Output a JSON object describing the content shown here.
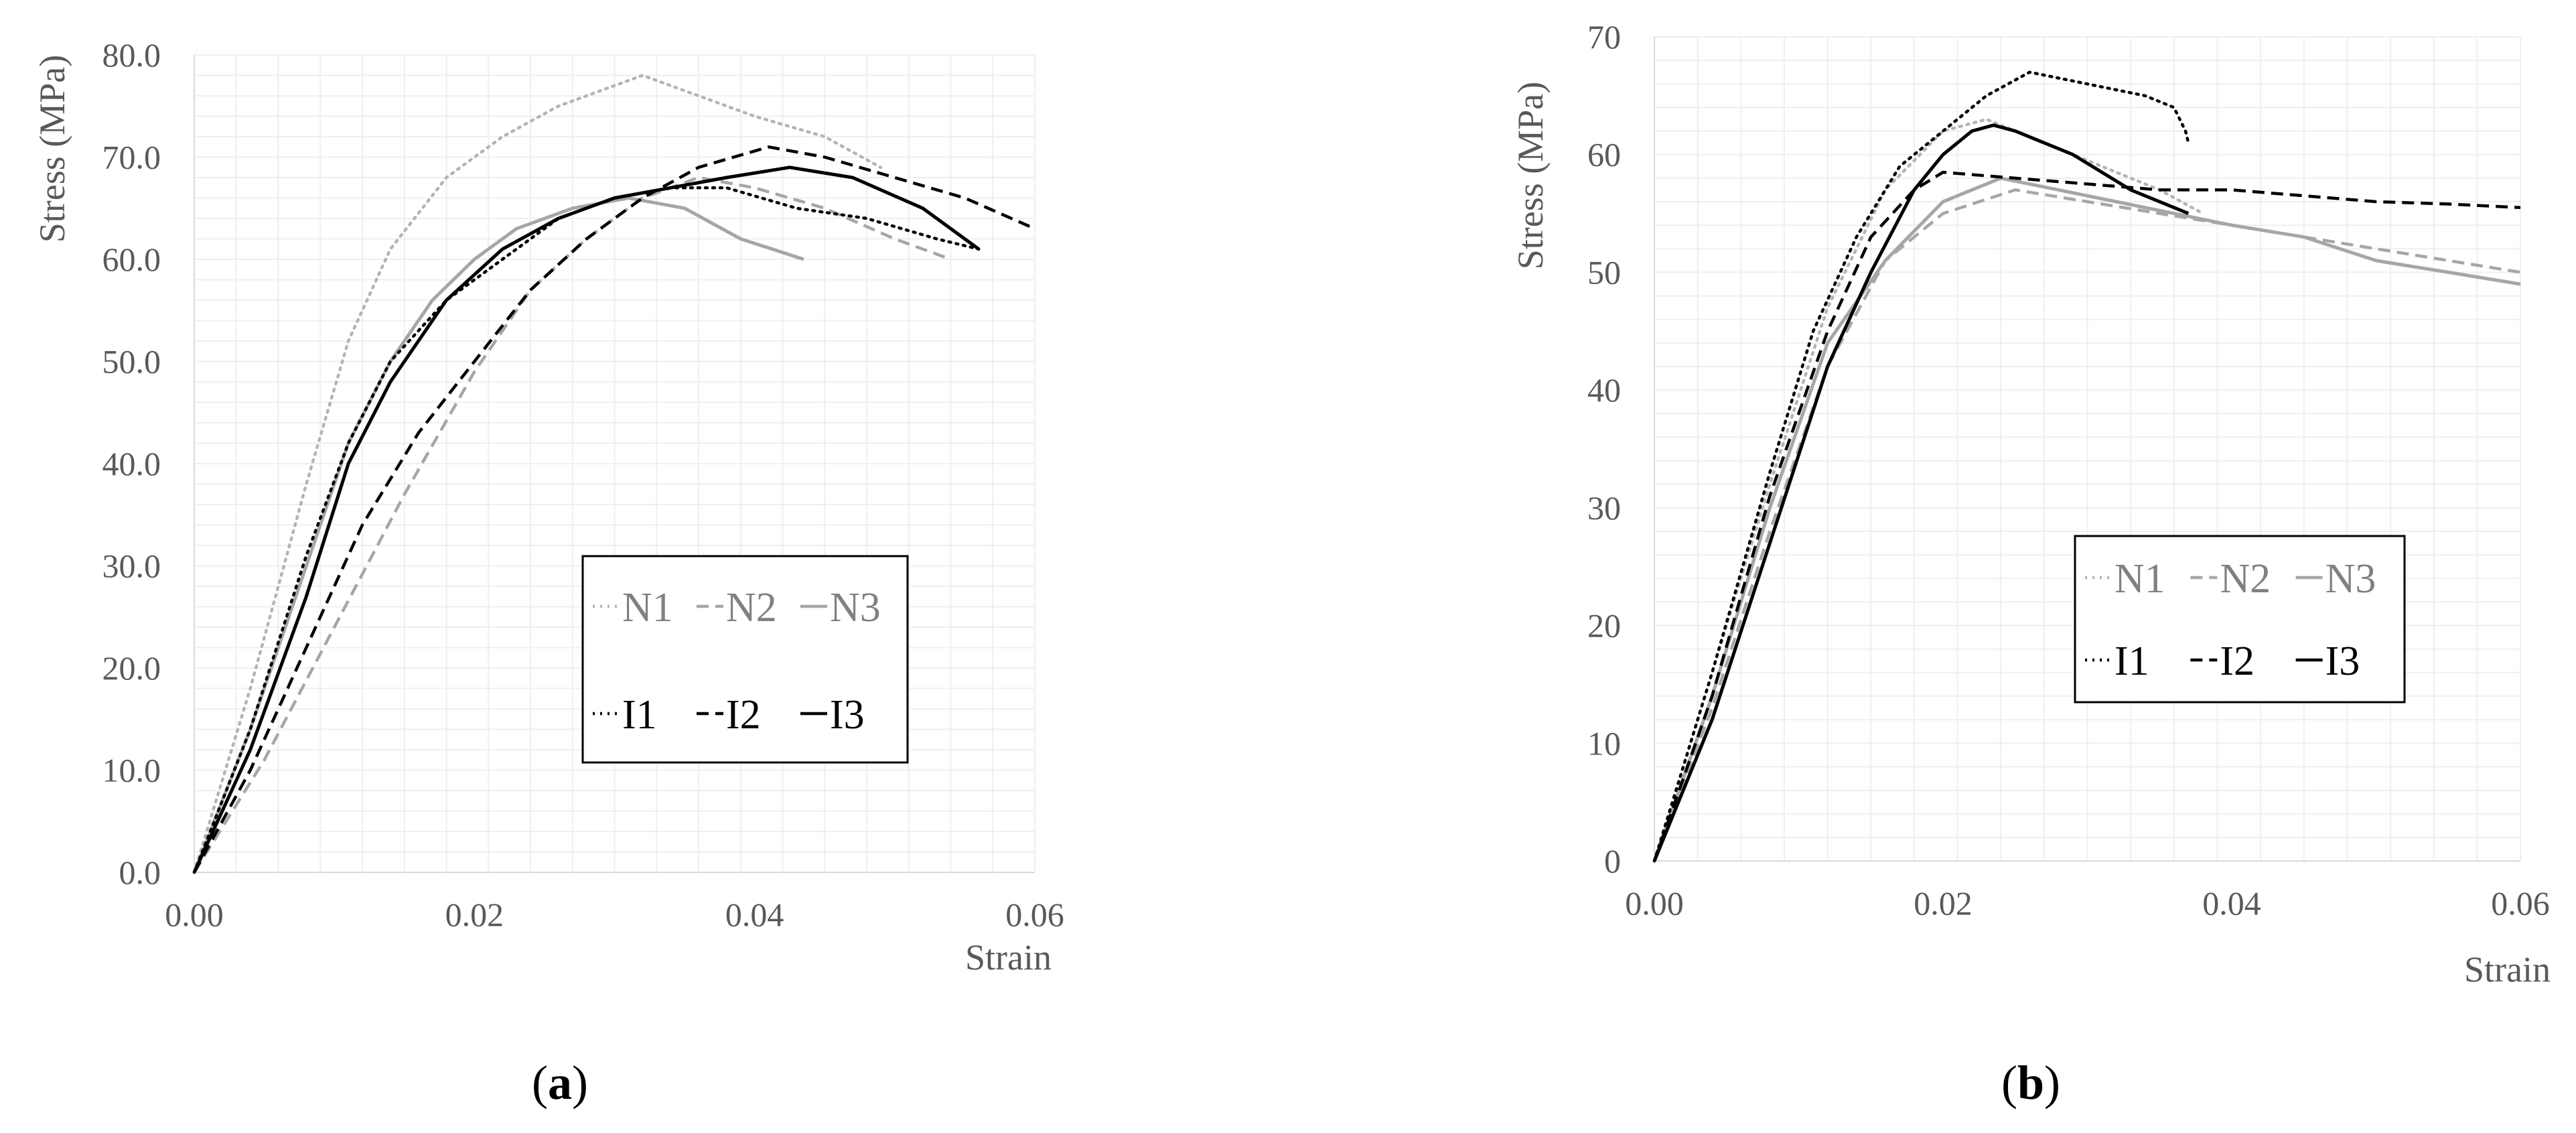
{
  "colors": {
    "dark": "#000000",
    "light": "#a6a6a6",
    "lighter": "#b4b4b4",
    "grid": "#efefef",
    "text": "#595959"
  },
  "chart_data": [
    {
      "type": "line",
      "panel": "a",
      "caption": {
        "open": "(",
        "letter": "a",
        "close": ")"
      },
      "xlabel": "Strain",
      "ylabel": "Stress (MPa)",
      "xlim": [
        0,
        0.06
      ],
      "ylim": [
        0,
        80
      ],
      "xticks": [
        0,
        0.02,
        0.04,
        0.06
      ],
      "xtick_labels": [
        "0.00",
        "0.02",
        "0.04",
        "0.06"
      ],
      "yticks": [
        0,
        10,
        20,
        30,
        40,
        50,
        60,
        70,
        80
      ],
      "ytick_labels": [
        "0.0",
        "10.0",
        "20.0",
        "30.0",
        "40.0",
        "50.0",
        "60.0",
        "70.0",
        "80.0"
      ],
      "grid": true,
      "legend_position": "lower-right",
      "series": [
        {
          "name": "N1",
          "dash": "dot",
          "color": "#b4b4b4",
          "x": [
            0,
            0.004,
            0.008,
            0.011,
            0.014,
            0.018,
            0.022,
            0.026,
            0.032,
            0.036,
            0.04,
            0.045,
            0.049
          ],
          "y": [
            0,
            18,
            38,
            52,
            61,
            68,
            72,
            75,
            78,
            76,
            74,
            72,
            69
          ]
        },
        {
          "name": "N2",
          "dash": "dash",
          "color": "#a6a6a6",
          "x": [
            0,
            0.005,
            0.01,
            0.015,
            0.02,
            0.024,
            0.028,
            0.032,
            0.036,
            0.04,
            0.045,
            0.05,
            0.054
          ],
          "y": [
            0,
            11,
            24,
            37,
            49,
            57,
            62,
            66,
            68,
            67,
            65,
            62,
            60
          ]
        },
        {
          "name": "N3",
          "dash": "solid",
          "color": "#a6a6a6",
          "x": [
            0,
            0.004,
            0.008,
            0.011,
            0.014,
            0.017,
            0.02,
            0.023,
            0.027,
            0.031,
            0.035,
            0.039,
            0.0435
          ],
          "y": [
            0,
            14,
            30,
            42,
            50,
            56,
            60,
            63,
            65,
            66,
            65,
            62,
            60
          ]
        },
        {
          "name": "I1",
          "dash": "dot",
          "color": "#000000",
          "x": [
            0,
            0.004,
            0.008,
            0.011,
            0.014,
            0.018,
            0.022,
            0.026,
            0.03,
            0.034,
            0.038,
            0.043,
            0.048,
            0.053,
            0.056
          ],
          "y": [
            0,
            14,
            31,
            42,
            50,
            56,
            60,
            64,
            66,
            67,
            67,
            65,
            64,
            62,
            61
          ]
        },
        {
          "name": "I2",
          "dash": "dash",
          "color": "#000000",
          "x": [
            0,
            0.004,
            0.008,
            0.012,
            0.016,
            0.02,
            0.024,
            0.028,
            0.032,
            0.036,
            0.041,
            0.045,
            0.05,
            0.055,
            0.06
          ],
          "y": [
            0,
            10,
            22,
            34,
            43,
            50,
            57,
            62,
            66,
            69,
            71,
            70,
            68,
            66,
            63
          ]
        },
        {
          "name": "I3",
          "dash": "solid",
          "color": "#000000",
          "x": [
            0,
            0.004,
            0.008,
            0.011,
            0.014,
            0.018,
            0.022,
            0.026,
            0.03,
            0.034,
            0.038,
            0.0425,
            0.047,
            0.052,
            0.056
          ],
          "y": [
            0,
            12,
            27,
            40,
            48,
            56,
            61,
            64,
            66,
            67,
            68,
            69,
            68,
            65,
            61
          ]
        }
      ],
      "legend_rows": [
        [
          "N1",
          "N2",
          "N3"
        ],
        [
          "I1",
          "I2",
          "I3"
        ]
      ]
    },
    {
      "type": "line",
      "panel": "b",
      "caption": {
        "open": "(",
        "letter": "b",
        "close": ")"
      },
      "xlabel": "Strain",
      "ylabel": "Stress (MPa)",
      "xlim": [
        0,
        0.06
      ],
      "ylim": [
        0,
        70
      ],
      "xticks": [
        0,
        0.02,
        0.04,
        0.06
      ],
      "xtick_labels": [
        "0.00",
        "0.02",
        "0.04",
        "0.06"
      ],
      "yticks": [
        0,
        10,
        20,
        30,
        40,
        50,
        60,
        70
      ],
      "ytick_labels": [
        "0",
        "10",
        "20",
        "30",
        "40",
        "50",
        "60",
        "70"
      ],
      "grid": true,
      "legend_position": "center-right",
      "series": [
        {
          "name": "N1",
          "dash": "dot",
          "color": "#b4b4b4",
          "x": [
            0,
            0.004,
            0.008,
            0.012,
            0.016,
            0.02,
            0.023,
            0.027,
            0.031,
            0.035,
            0.038
          ],
          "y": [
            0,
            16,
            32,
            47,
            57,
            62,
            63,
            61,
            59,
            57,
            55
          ]
        },
        {
          "name": "N2",
          "dash": "dash",
          "color": "#a6a6a6",
          "x": [
            0,
            0.004,
            0.008,
            0.012,
            0.016,
            0.02,
            0.025,
            0.03,
            0.035,
            0.04,
            0.045,
            0.05,
            0.055,
            0.06
          ],
          "y": [
            0,
            13,
            28,
            42,
            51,
            55,
            57,
            56,
            55,
            54,
            53,
            52,
            51,
            50
          ]
        },
        {
          "name": "N3",
          "dash": "solid",
          "color": "#a6a6a6",
          "x": [
            0,
            0.004,
            0.008,
            0.012,
            0.016,
            0.02,
            0.024,
            0.028,
            0.032,
            0.036,
            0.04,
            0.045,
            0.05,
            0.055,
            0.06
          ],
          "y": [
            0,
            14,
            30,
            44,
            51,
            56,
            58,
            57,
            56,
            55,
            54,
            53,
            51,
            50,
            49
          ]
        },
        {
          "name": "I1",
          "dash": "dot",
          "color": "#000000",
          "x": [
            0,
            0.004,
            0.008,
            0.011,
            0.014,
            0.017,
            0.02,
            0.023,
            0.026,
            0.03,
            0.034,
            0.036,
            0.0368,
            0.037
          ],
          "y": [
            0,
            16,
            33,
            45,
            53,
            59,
            62,
            65,
            67,
            66,
            65,
            64,
            62,
            61
          ]
        },
        {
          "name": "I2",
          "dash": "dash",
          "color": "#000000",
          "x": [
            0,
            0.004,
            0.008,
            0.012,
            0.015,
            0.018,
            0.02,
            0.025,
            0.03,
            0.035,
            0.04,
            0.045,
            0.05,
            0.055,
            0.06
          ],
          "y": [
            0,
            14,
            31,
            45,
            53,
            57,
            58.5,
            58,
            57.5,
            57,
            57,
            56.5,
            56,
            55.8,
            55.5
          ]
        },
        {
          "name": "I3",
          "dash": "solid",
          "color": "#000000",
          "x": [
            0,
            0.004,
            0.008,
            0.012,
            0.015,
            0.018,
            0.02,
            0.022,
            0.0235,
            0.025,
            0.029,
            0.033,
            0.037
          ],
          "y": [
            0,
            12,
            27,
            42,
            50,
            57,
            60,
            62,
            62.5,
            62,
            60,
            57,
            55
          ]
        }
      ],
      "legend_rows": [
        [
          "N1",
          "N2",
          "N3"
        ],
        [
          "I1",
          "I2",
          "I3"
        ]
      ]
    }
  ]
}
